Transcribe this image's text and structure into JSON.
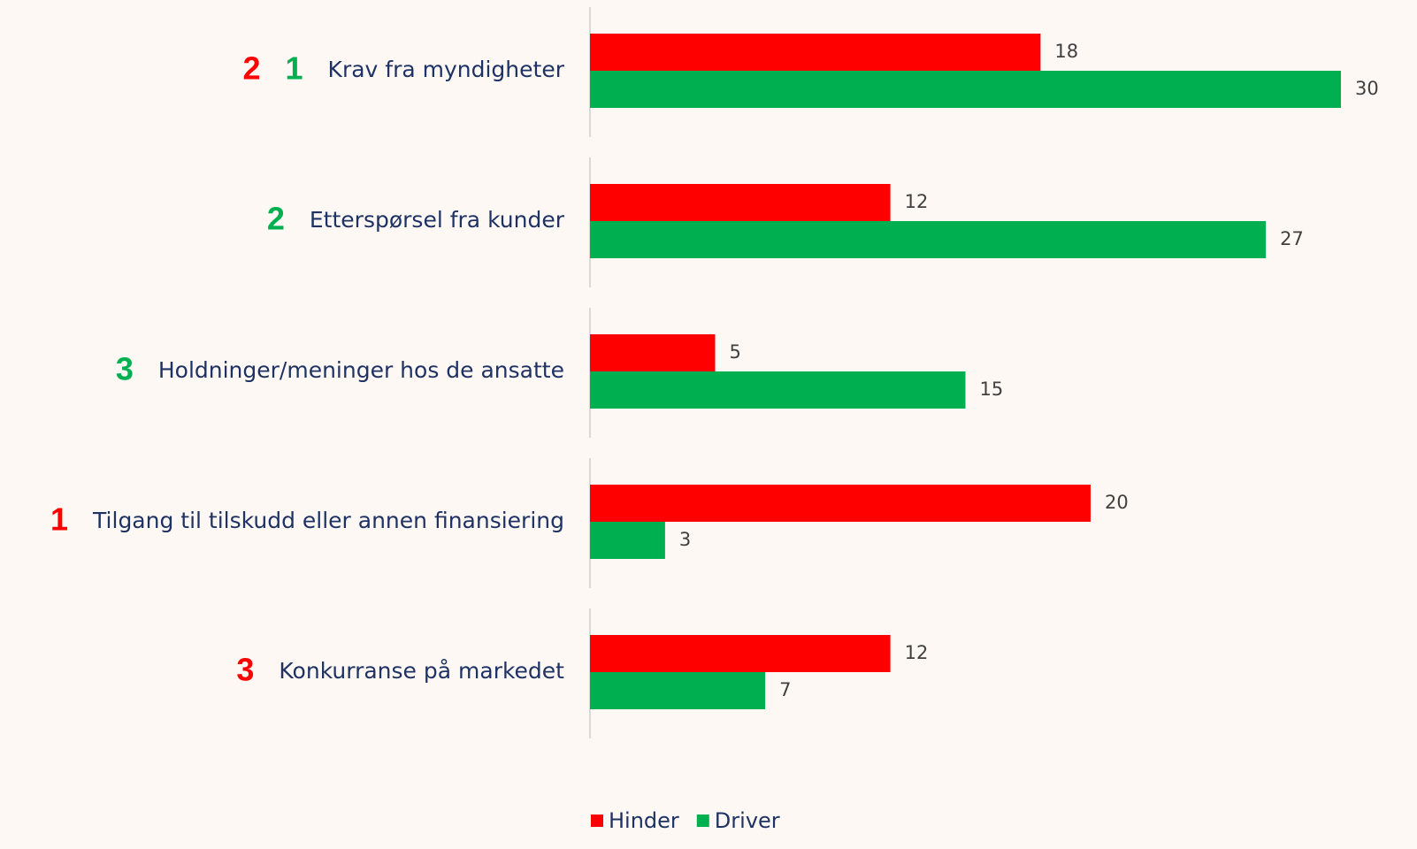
{
  "chart_data": {
    "type": "bar",
    "orientation": "horizontal",
    "categories": [
      "Krav fra myndigheter",
      "Etterspørsel fra kunder",
      "Holdninger/meninger hos de ansatte",
      "Tilgang til tilskudd eller annen finansiering",
      "Konkurranse på markedet"
    ],
    "series": [
      {
        "name": "Hinder",
        "color": "#ff0000",
        "values": [
          18,
          12,
          5,
          20,
          12
        ],
        "ranks": [
          2,
          null,
          null,
          1,
          3
        ]
      },
      {
        "name": "Driver",
        "color": "#00b050",
        "values": [
          30,
          27,
          15,
          3,
          7
        ],
        "ranks": [
          1,
          2,
          3,
          null,
          null
        ]
      }
    ],
    "legend": "bottom"
  }
}
